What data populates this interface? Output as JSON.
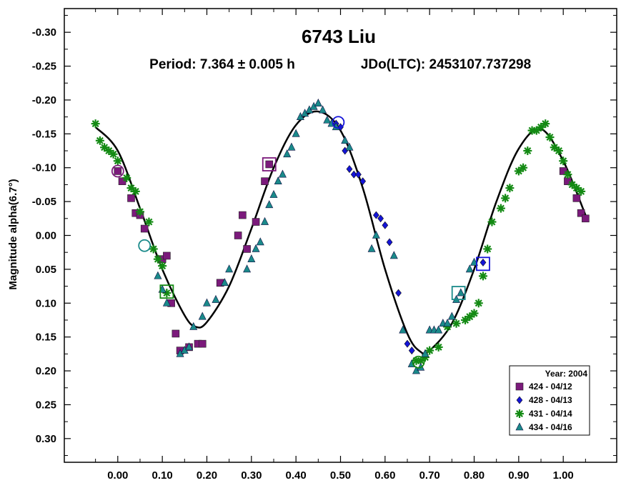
{
  "chart_data": {
    "type": "scatter",
    "title": "6743 Liu",
    "subtitle_period": "Period: 7.364 ± 0.005 h",
    "subtitle_jdo": "JDo(LTC): 2453107.737298",
    "ylabel": "Magnitude alpha(6.7°)",
    "xlim": [
      -0.12,
      1.12
    ],
    "ylim": [
      -0.335,
      0.335
    ],
    "y_inverted": true,
    "x_ticks": [
      0.0,
      0.1,
      0.2,
      0.3,
      0.4,
      0.5,
      0.6,
      0.7,
      0.8,
      0.9,
      1.0
    ],
    "x_tick_labels": [
      "0.00",
      "0.10",
      "0.20",
      "0.30",
      "0.40",
      "0.50",
      "0.60",
      "0.70",
      "0.80",
      "0.90",
      "1.00"
    ],
    "y_ticks": [
      -0.3,
      -0.25,
      -0.2,
      -0.15,
      -0.1,
      -0.05,
      0.0,
      0.05,
      0.1,
      0.15,
      0.2,
      0.25,
      0.3
    ],
    "y_tick_labels": [
      "-0.30",
      "-0.25",
      "-0.20",
      "-0.15",
      "-0.10",
      "-0.05",
      "0.00",
      "0.05",
      "0.10",
      "0.15",
      "0.20",
      "0.25",
      "0.30"
    ],
    "grid": false,
    "legend_position": "bottom-right",
    "legend_title": "Year: 2004",
    "fit_curve": {
      "points": [
        [
          -0.05,
          -0.16
        ],
        [
          0.0,
          -0.125
        ],
        [
          0.05,
          -0.04
        ],
        [
          0.1,
          0.05
        ],
        [
          0.15,
          0.118
        ],
        [
          0.175,
          0.135
        ],
        [
          0.2,
          0.128
        ],
        [
          0.25,
          0.075
        ],
        [
          0.3,
          -0.01
        ],
        [
          0.35,
          -0.1
        ],
        [
          0.4,
          -0.163
        ],
        [
          0.45,
          -0.183
        ],
        [
          0.5,
          -0.155
        ],
        [
          0.55,
          -0.07
        ],
        [
          0.6,
          0.05
        ],
        [
          0.65,
          0.145
        ],
        [
          0.68,
          0.172
        ],
        [
          0.7,
          0.17
        ],
        [
          0.75,
          0.13
        ],
        [
          0.8,
          0.05
        ],
        [
          0.85,
          -0.05
        ],
        [
          0.9,
          -0.128
        ],
        [
          0.95,
          -0.157
        ],
        [
          1.0,
          -0.11
        ],
        [
          1.05,
          -0.03
        ]
      ]
    },
    "series": [
      {
        "name": "424 - 04/12",
        "marker": "square",
        "color": "#7b1a7b",
        "x": [
          0.0,
          0.01,
          0.03,
          0.04,
          0.05,
          0.06,
          0.1,
          0.11,
          0.12,
          0.13,
          0.14,
          0.16,
          0.18,
          0.19,
          0.23,
          0.27,
          0.28,
          0.29,
          0.31,
          0.33,
          0.34,
          1.0,
          1.01,
          1.03,
          1.04,
          1.05
        ],
        "y": [
          -0.095,
          -0.08,
          -0.055,
          -0.033,
          -0.03,
          -0.01,
          0.035,
          0.03,
          0.1,
          0.145,
          0.17,
          0.165,
          0.16,
          0.16,
          0.07,
          0.0,
          -0.03,
          0.02,
          -0.02,
          -0.08,
          -0.105,
          -0.095,
          -0.08,
          -0.055,
          -0.033,
          -0.025
        ]
      },
      {
        "name": "428 - 04/13",
        "marker": "diamond",
        "color": "#1414d8",
        "x": [
          0.49,
          0.5,
          0.51,
          0.52,
          0.53,
          0.54,
          0.55,
          0.58,
          0.59,
          0.6,
          0.61,
          0.63,
          0.65,
          0.66,
          0.82
        ],
        "y": [
          -0.165,
          -0.16,
          -0.125,
          -0.098,
          -0.09,
          -0.09,
          -0.08,
          -0.03,
          -0.025,
          -0.015,
          0.01,
          0.085,
          0.16,
          0.17,
          0.04
        ]
      },
      {
        "name": "431 - 04/14",
        "marker": "asterisk",
        "color": "#138a13",
        "x": [
          -0.05,
          -0.04,
          -0.03,
          -0.02,
          -0.01,
          0.0,
          0.02,
          0.03,
          0.04,
          0.05,
          0.07,
          0.08,
          0.09,
          0.1,
          0.11,
          0.67,
          0.68,
          0.69,
          0.7,
          0.72,
          0.74,
          0.76,
          0.78,
          0.79,
          0.8,
          0.81,
          0.82,
          0.83,
          0.84,
          0.86,
          0.87,
          0.88,
          0.9,
          0.91,
          0.92,
          0.93,
          0.94,
          0.95,
          0.96,
          0.97,
          0.98,
          0.99,
          1.0,
          1.01,
          1.02,
          1.03,
          1.04
        ],
        "y": [
          -0.165,
          -0.14,
          -0.13,
          -0.125,
          -0.12,
          -0.11,
          -0.085,
          -0.07,
          -0.065,
          -0.035,
          -0.02,
          0.02,
          0.035,
          0.045,
          0.085,
          0.185,
          0.185,
          0.18,
          0.17,
          0.165,
          0.135,
          0.13,
          0.125,
          0.12,
          0.115,
          0.1,
          0.06,
          0.02,
          -0.02,
          -0.04,
          -0.055,
          -0.07,
          -0.095,
          -0.1,
          -0.125,
          -0.155,
          -0.155,
          -0.16,
          -0.165,
          -0.145,
          -0.13,
          -0.125,
          -0.11,
          -0.09,
          -0.075,
          -0.07,
          -0.065
        ]
      },
      {
        "name": "434 - 04/16",
        "marker": "triangle",
        "color": "#1a8a8a",
        "x": [
          0.09,
          0.1,
          0.11,
          0.14,
          0.15,
          0.16,
          0.17,
          0.19,
          0.2,
          0.22,
          0.24,
          0.25,
          0.29,
          0.3,
          0.31,
          0.32,
          0.33,
          0.34,
          0.35,
          0.36,
          0.37,
          0.38,
          0.39,
          0.4,
          0.41,
          0.42,
          0.43,
          0.44,
          0.45,
          0.46,
          0.47,
          0.48,
          0.49,
          0.51,
          0.52,
          0.57,
          0.58,
          0.62,
          0.64,
          0.66,
          0.67,
          0.68,
          0.69,
          0.7,
          0.71,
          0.72,
          0.73,
          0.74,
          0.75,
          0.76,
          0.77,
          0.79,
          0.8
        ],
        "y": [
          0.06,
          0.08,
          0.1,
          0.175,
          0.17,
          0.165,
          0.135,
          0.12,
          0.1,
          0.095,
          0.07,
          0.05,
          0.05,
          0.035,
          0.02,
          0.01,
          -0.02,
          -0.045,
          -0.06,
          -0.08,
          -0.09,
          -0.12,
          -0.13,
          -0.15,
          -0.175,
          -0.18,
          -0.185,
          -0.19,
          -0.195,
          -0.185,
          -0.17,
          -0.165,
          -0.16,
          -0.14,
          -0.13,
          0.02,
          0.0,
          0.03,
          0.14,
          0.19,
          0.2,
          0.195,
          0.175,
          0.14,
          0.14,
          0.14,
          0.13,
          0.13,
          0.12,
          0.095,
          0.085,
          0.05,
          0.04
        ]
      }
    ],
    "highlighted_points": [
      {
        "marker": "circle",
        "color": "#7b1a7b",
        "x": 0.0,
        "y": -0.095
      },
      {
        "marker": "square",
        "color": "#7b1a7b",
        "x": 0.34,
        "y": -0.105
      },
      {
        "marker": "circle",
        "color": "#1414d8",
        "x": 0.495,
        "y": -0.167
      },
      {
        "marker": "square",
        "color": "#1414d8",
        "x": 0.82,
        "y": 0.042
      },
      {
        "marker": "circle",
        "color": "#1a8a8a",
        "x": 0.06,
        "y": 0.015
      },
      {
        "marker": "square",
        "color": "#138a13",
        "x": 0.11,
        "y": 0.083
      },
      {
        "marker": "circle",
        "color": "#138a13",
        "x": 0.675,
        "y": 0.187
      },
      {
        "marker": "square",
        "color": "#1a8a8a",
        "x": 0.765,
        "y": 0.085
      }
    ]
  }
}
